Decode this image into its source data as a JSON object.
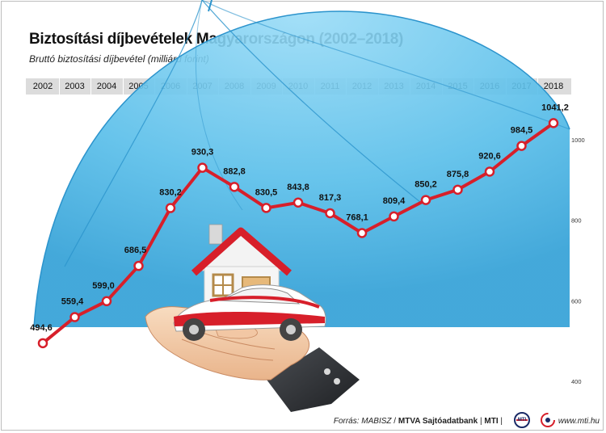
{
  "header": {
    "title": "Biztosítási díjbevételek Magyarországon (2002–2018)",
    "subtitle": "Bruttó biztosítási díjbevétel (milliárd forint)"
  },
  "chart_data": {
    "type": "line",
    "title": "Biztosítási díjbevételek Magyarországon (2002–2018)",
    "ylabel": "Bruttó biztosítási díjbevétel (milliárd forint)",
    "xlabel": "",
    "categories": [
      "2002",
      "2003",
      "2004",
      "2005",
      "2006",
      "2007",
      "2008",
      "2009",
      "2010",
      "2011",
      "2012",
      "2013",
      "2014",
      "2015",
      "2016",
      "2017",
      "2018"
    ],
    "series": [
      {
        "name": "Bruttó biztosítási díjbevétel",
        "values": [
          494.6,
          559.4,
          599.0,
          686.5,
          830.2,
          930.3,
          882.8,
          830.5,
          843.8,
          817.3,
          768.1,
          809.4,
          850.2,
          875.8,
          920.6,
          984.5,
          1041.2
        ],
        "labels": [
          "494,6",
          "559,4",
          "599,0",
          "686,5",
          "830,2",
          "930,3",
          "882,8",
          "830,5",
          "843,8",
          "817,3",
          "768,1",
          "809,4",
          "850,2",
          "875,8",
          "920,6",
          "984,5",
          "1041,2"
        ]
      }
    ],
    "y_ticks": [
      400,
      600,
      800,
      1000
    ],
    "ylim": [
      400,
      1100
    ],
    "grid": false,
    "colors": {
      "line": "#d71f2a",
      "marker_fill": "#ffffff",
      "dome": "#5ec3ee",
      "year_band": "#dcdcdc"
    }
  },
  "footer": {
    "source_label": "Forrás:",
    "source_name": "MABISZ",
    "agency": "MTVA Sajtóadatbank",
    "agency_short": "MTI",
    "url": "www.mti.hu",
    "logo_text": "MTI"
  },
  "illustration": {
    "icon": "hand-holding-house-and-car"
  }
}
